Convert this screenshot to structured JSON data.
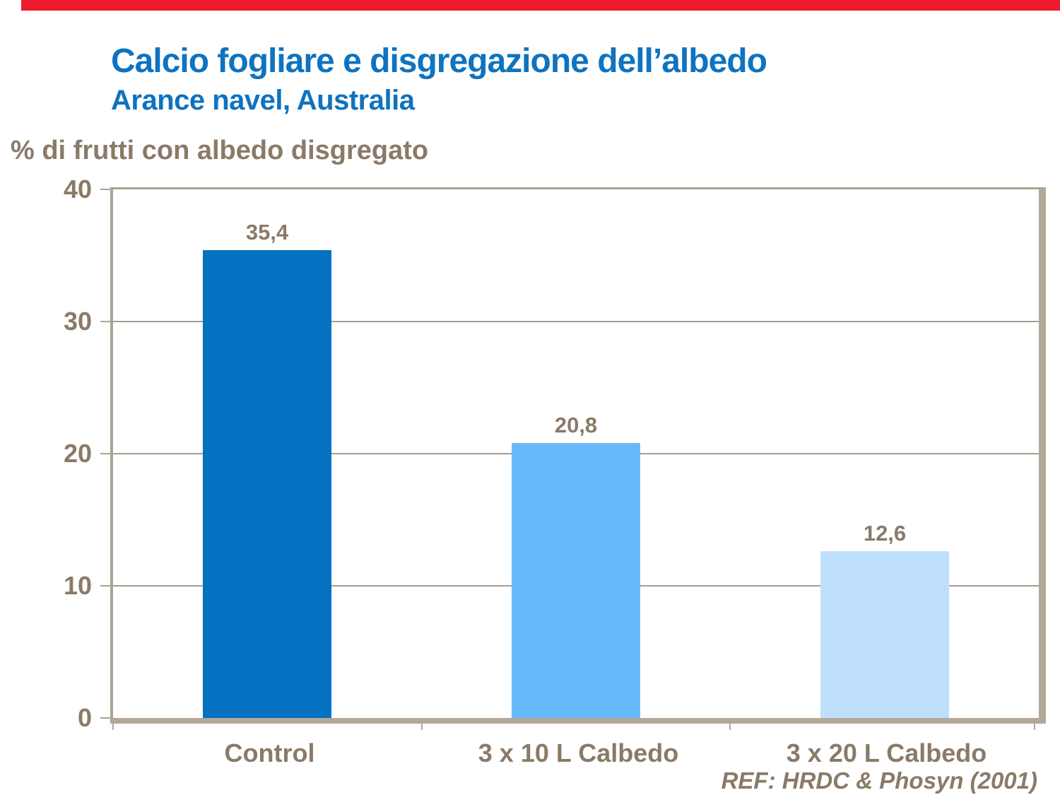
{
  "slide": {
    "accent_bar_color": "#ec1b2e",
    "background": "#ffffff"
  },
  "header": {
    "title": "Calcio fogliare e disgregazione dell’albedo",
    "subtitle": "Arance navel, Australia",
    "title_color": "#0e73c0"
  },
  "chart_data": {
    "type": "bar",
    "title": "Calcio fogliare e disgregazione dell’albedo — Arance navel, Australia",
    "ylabel": "% di frutti con albedo disgregato",
    "xlabel": "",
    "categories": [
      "Control",
      "3 x 10 L Calbedo",
      "3 x 20 L Calbedo"
    ],
    "values": [
      35.4,
      20.8,
      12.6
    ],
    "value_labels": [
      "35,4",
      "20,8",
      "12,6"
    ],
    "bar_colors": [
      "#0571c1",
      "#66b9fb",
      "#bfe0fc"
    ],
    "ylim": [
      0,
      40
    ],
    "yticks": [
      0,
      10,
      20,
      30,
      40
    ],
    "grid": "horizontal",
    "legend": "none"
  },
  "footer": {
    "ref": "REF: HRDC & Phosyn (2001)"
  },
  "colors": {
    "text_brown": "#8a7a68",
    "frame": "#b3a89a",
    "frame_light": "#aca295",
    "gridline": "#a89d8e"
  }
}
